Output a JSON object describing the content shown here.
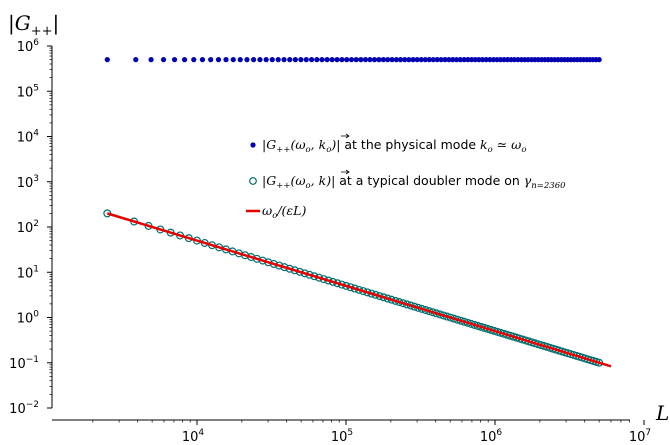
{
  "chart_data": {
    "type": "scatter",
    "title": "",
    "xlabel": "L",
    "ylabel": "|G++|",
    "x_scale": "log",
    "y_scale": "log",
    "xlim": [
      1000,
      10000000
    ],
    "ylim": [
      0.01,
      1000000
    ],
    "x_ticks": [
      {
        "value": 10000,
        "base": "10",
        "exp": "4"
      },
      {
        "value": 100000,
        "base": "10",
        "exp": "5"
      },
      {
        "value": 1000000,
        "base": "10",
        "exp": "6"
      },
      {
        "value": 10000000,
        "base": "10",
        "exp": "7"
      }
    ],
    "y_ticks": [
      {
        "value": 0.01,
        "base": "10",
        "exp": "−2"
      },
      {
        "value": 0.1,
        "base": "10",
        "exp": "−1"
      },
      {
        "value": 1,
        "base": "10",
        "exp": "0"
      },
      {
        "value": 10,
        "base": "10",
        "exp": "1"
      },
      {
        "value": 100,
        "base": "10",
        "exp": "2"
      },
      {
        "value": 1000,
        "base": "10",
        "exp": "3"
      },
      {
        "value": 10000,
        "base": "10",
        "exp": "4"
      },
      {
        "value": 100000,
        "base": "10",
        "exp": "5"
      },
      {
        "value": 1000000,
        "base": "10",
        "exp": "6"
      }
    ],
    "grid": false,
    "legend_position": "center-right",
    "series": [
      {
        "name": "|G++(ωo, ko)| at the physical mode ko ≃ ωo",
        "marker": "filled-circle",
        "color": "#0000b3",
        "x_range": [
          2500,
          5000000
        ],
        "y_value": 500000,
        "count": 100
      },
      {
        "name": "|G++(ωo, k)| at a typical doubler mode on γn=2360",
        "marker": "open-circle",
        "color": "#006e6e",
        "x_range": [
          2500,
          5000000
        ],
        "y_start": 200,
        "y_end": 0.1,
        "count": 110
      },
      {
        "name": "ωo/(εL)",
        "marker": "line",
        "color": "#e60000",
        "x_range": [
          2500,
          6000000
        ],
        "y_start": 200,
        "y_end": 0.0833
      }
    ]
  },
  "legend": {
    "entry1": {
      "prefix": "|G",
      "sub": "++",
      "mid": "(ω",
      "sub2": "o",
      "comma": ", ",
      "vec": "k",
      "sub3": "o",
      "close": ")|",
      "text": " at the physical mode ",
      "k": "k",
      "ksub": "o",
      "approx": " ≃ ω",
      "osub": "o"
    },
    "entry2": {
      "prefix": "|G",
      "sub": "++",
      "mid": "(ω",
      "sub2": "o",
      "comma": ", ",
      "vec": "k",
      "close": ")|",
      "text": " at a typical doubler mode on ",
      "gamma": "γ",
      "gsub": "n=2360"
    },
    "entry3": {
      "num": "ω",
      "numsub": "o",
      "slash": "/(",
      "eps": "ε",
      "L": "L",
      "close": ")"
    }
  }
}
